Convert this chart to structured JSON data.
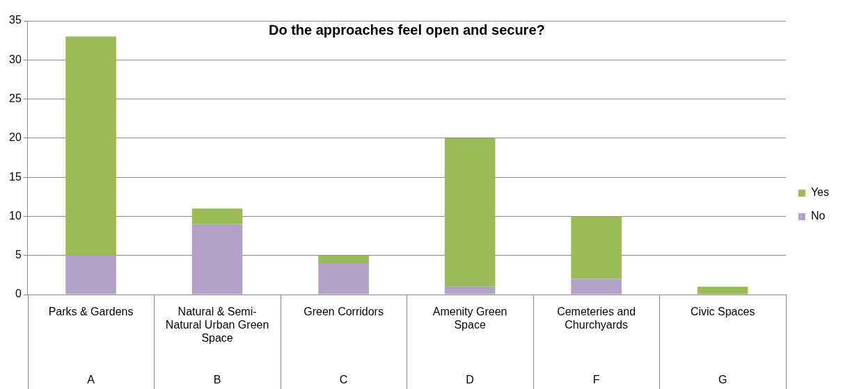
{
  "chart_data": {
    "type": "bar",
    "title": "Do the approaches feel open and secure?",
    "categories": [
      "Parks & Gardens",
      "Natural & Semi-Natural Urban Green Space",
      "Green Corridors",
      "Amenity Green Space",
      "Cemeteries and Churchyards",
      "Civic Spaces"
    ],
    "series": [
      {
        "name": "No",
        "color": "#b2a2c7",
        "values": [
          5,
          9,
          4,
          1,
          2,
          0
        ]
      },
      {
        "name": "Yes",
        "color": "#9bbb59",
        "values": [
          28,
          2,
          1,
          19,
          8,
          1
        ]
      }
    ],
    "annotations": [
      "A",
      "B",
      "C",
      "D",
      "F",
      "G"
    ],
    "stacked": true,
    "ylim": [
      0,
      35
    ],
    "yticks": [
      0,
      5,
      10,
      15,
      20,
      25,
      30,
      35
    ],
    "grid": "y",
    "legend": "right"
  }
}
